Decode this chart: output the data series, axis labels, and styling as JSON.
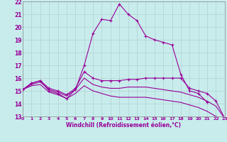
{
  "xlabel": "Windchill (Refroidissement éolien,°C)",
  "xlim": [
    0,
    23
  ],
  "ylim": [
    13,
    22
  ],
  "xticks": [
    0,
    1,
    2,
    3,
    4,
    5,
    6,
    7,
    8,
    9,
    10,
    11,
    12,
    13,
    14,
    15,
    16,
    17,
    18,
    19,
    20,
    21,
    22,
    23
  ],
  "yticks": [
    13,
    14,
    15,
    16,
    17,
    18,
    19,
    20,
    21,
    22
  ],
  "bg_color": "#c8ecec",
  "grid_color": "#b0d0d0",
  "line_color": "#990099",
  "spine_color": "#888888",
  "lines": [
    {
      "x": [
        0,
        1,
        2,
        3,
        4,
        5,
        6,
        7,
        8,
        9,
        10,
        11,
        12,
        13,
        14,
        15,
        16,
        17,
        18,
        19,
        20,
        21
      ],
      "y": [
        15.1,
        15.6,
        15.8,
        15.0,
        14.8,
        14.4,
        15.1,
        17.0,
        19.5,
        20.6,
        20.5,
        21.8,
        21.0,
        20.5,
        19.3,
        19.0,
        18.8,
        18.6,
        16.3,
        15.0,
        14.8,
        14.1
      ],
      "marker": true
    },
    {
      "x": [
        0,
        1,
        2,
        3,
        4,
        5,
        6,
        7,
        8,
        9,
        10,
        11,
        12,
        13,
        14,
        15,
        16,
        17,
        18,
        19,
        20,
        21,
        22,
        23
      ],
      "y": [
        15.1,
        15.6,
        15.8,
        15.2,
        15.0,
        14.7,
        15.2,
        16.5,
        16.0,
        15.8,
        15.8,
        15.8,
        15.9,
        15.9,
        16.0,
        16.0,
        16.0,
        16.0,
        16.0,
        15.2,
        15.0,
        14.8,
        14.2,
        12.85
      ],
      "marker": true
    },
    {
      "x": [
        0,
        1,
        2,
        3,
        4,
        5,
        6,
        7,
        8,
        9,
        10,
        11,
        12,
        13,
        14,
        15,
        16,
        17,
        18,
        19,
        20,
        21,
        22,
        23
      ],
      "y": [
        15.1,
        15.5,
        15.7,
        15.1,
        14.9,
        14.6,
        15.1,
        16.0,
        15.5,
        15.3,
        15.2,
        15.2,
        15.3,
        15.3,
        15.3,
        15.2,
        15.1,
        15.0,
        14.9,
        14.7,
        14.5,
        14.2,
        13.8,
        12.85
      ],
      "marker": false
    },
    {
      "x": [
        0,
        1,
        2,
        3,
        4,
        5,
        6,
        7,
        8,
        9,
        10,
        11,
        12,
        13,
        14,
        15,
        16,
        17,
        18,
        19,
        20,
        21,
        22,
        23
      ],
      "y": [
        15.1,
        15.4,
        15.5,
        14.9,
        14.7,
        14.4,
        14.8,
        15.4,
        15.0,
        14.8,
        14.6,
        14.5,
        14.5,
        14.5,
        14.5,
        14.4,
        14.3,
        14.2,
        14.1,
        13.9,
        13.7,
        13.4,
        13.0,
        12.85
      ],
      "marker": false
    }
  ]
}
